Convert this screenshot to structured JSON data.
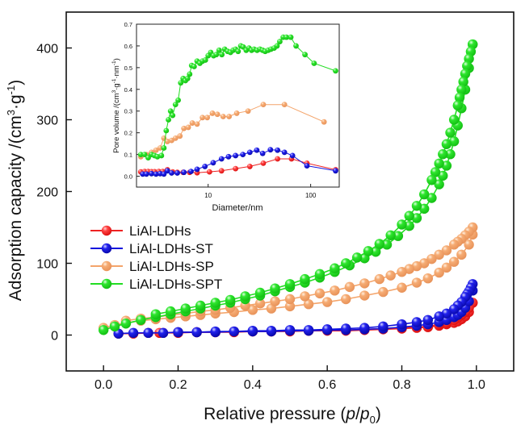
{
  "chart_data": [
    {
      "type": "scatter",
      "role": "main",
      "title": "",
      "xlabel": "Relative pressure (p/p0)",
      "xlabel_parts": [
        "Relative pressure (",
        "p",
        "/",
        "p",
        "0",
        ")"
      ],
      "ylabel": "Adsorption capacity /(cm3·g-1)",
      "ylabel_parts": [
        "Adsorption capacity /(cm",
        "3",
        "·g",
        "-1",
        ")"
      ],
      "xlim": [
        -0.1,
        1.1
      ],
      "ylim": [
        -50,
        450
      ],
      "xticks": [
        0.0,
        0.2,
        0.4,
        0.6,
        0.8,
        1.0
      ],
      "xtick_labels": [
        "0.0",
        "0.2",
        "0.4",
        "0.6",
        "0.8",
        "1.0"
      ],
      "yticks": [
        0,
        100,
        200,
        300,
        400
      ],
      "ytick_labels": [
        "0",
        "100",
        "200",
        "300",
        "400"
      ],
      "grid": false,
      "legend_position": "middle-left",
      "series": [
        {
          "name": "LiAl-LDHs",
          "color": "#ee2222",
          "adsorption": {
            "x": [
              0.04,
              0.08,
              0.12,
              0.16,
              0.2,
              0.25,
              0.3,
              0.35,
              0.4,
              0.45,
              0.5,
              0.55,
              0.6,
              0.65,
              0.7,
              0.75,
              0.8,
              0.84,
              0.87,
              0.9,
              0.92,
              0.94,
              0.95,
              0.96,
              0.97,
              0.98,
              0.99
            ],
            "y": [
              2,
              2,
              3,
              3,
              3,
              4,
              4,
              4,
              5,
              5,
              5,
              6,
              6,
              6,
              7,
              8,
              9,
              10,
              11,
              13,
              15,
              17,
              19,
              22,
              26,
              32,
              45
            ]
          },
          "desorption": {
            "x": [
              0.99,
              0.98,
              0.97,
              0.96,
              0.95,
              0.94,
              0.92,
              0.9,
              0.87,
              0.84,
              0.8,
              0.75,
              0.7,
              0.65,
              0.6,
              0.55,
              0.5,
              0.45,
              0.4,
              0.35,
              0.3,
              0.25,
              0.2,
              0.15
            ],
            "y": [
              45,
              38,
              32,
              28,
              24,
              21,
              17,
              15,
              12,
              11,
              10,
              9,
              8,
              7,
              7,
              6,
              6,
              5,
              5,
              5,
              4,
              4,
              4,
              3
            ]
          }
        },
        {
          "name": "LiAl-LDHs-ST",
          "color": "#1111dd",
          "adsorption": {
            "x": [
              0.04,
              0.08,
              0.12,
              0.16,
              0.2,
              0.25,
              0.3,
              0.35,
              0.4,
              0.45,
              0.5,
              0.55,
              0.6,
              0.65,
              0.7,
              0.75,
              0.8,
              0.84,
              0.87,
              0.9,
              0.92,
              0.94,
              0.95,
              0.96,
              0.97,
              0.98,
              0.99
            ],
            "y": [
              2,
              3,
              3,
              3,
              4,
              4,
              4,
              5,
              5,
              5,
              6,
              6,
              7,
              7,
              8,
              9,
              11,
              13,
              15,
              18,
              21,
              25,
              28,
              32,
              38,
              47,
              62
            ]
          },
          "desorption": {
            "x": [
              0.99,
              0.985,
              0.98,
              0.975,
              0.97,
              0.96,
              0.95,
              0.94,
              0.92,
              0.9,
              0.87,
              0.84,
              0.8,
              0.75,
              0.7,
              0.65,
              0.6,
              0.55,
              0.5,
              0.45,
              0.4,
              0.35,
              0.3,
              0.25,
              0.2
            ],
            "y": [
              71,
              66,
              61,
              57,
              53,
              46,
              41,
              36,
              30,
              26,
              21,
              18,
              15,
              12,
              10,
              9,
              8,
              7,
              7,
              6,
              6,
              5,
              5,
              4,
              4
            ]
          }
        },
        {
          "name": "LiAl-LDHs-SP",
          "color": "#f4a46a",
          "adsorption": {
            "x": [
              0.0,
              0.03,
              0.06,
              0.1,
              0.14,
              0.18,
              0.22,
              0.26,
              0.3,
              0.35,
              0.4,
              0.45,
              0.5,
              0.55,
              0.6,
              0.65,
              0.7,
              0.75,
              0.8,
              0.84,
              0.87,
              0.9,
              0.92,
              0.94,
              0.96,
              0.98,
              0.99
            ],
            "y": [
              10,
              14,
              17,
              20,
              22,
              24,
              26,
              28,
              30,
              32,
              35,
              37,
              40,
              43,
              46,
              50,
              55,
              60,
              66,
              73,
              79,
              87,
              94,
              102,
              112,
              126,
              140
            ]
          },
          "desorption": {
            "x": [
              0.99,
              0.98,
              0.97,
              0.96,
              0.95,
              0.94,
              0.92,
              0.9,
              0.88,
              0.86,
              0.84,
              0.82,
              0.8,
              0.77,
              0.74,
              0.7,
              0.66,
              0.62,
              0.58,
              0.54,
              0.5,
              0.46,
              0.42,
              0.38,
              0.34,
              0.3,
              0.26,
              0.22,
              0.18,
              0.14,
              0.1,
              0.06
            ],
            "y": [
              150,
              144,
              139,
              134,
              130,
              126,
              118,
              112,
              106,
              100,
              96,
              92,
              88,
              83,
              78,
              72,
              67,
              62,
              58,
              54,
              50,
              47,
              44,
              41,
              38,
              35,
              33,
              30,
              28,
              25,
              23,
              20
            ]
          }
        },
        {
          "name": "LiAl-LDHs-SPT",
          "color": "#22dd22",
          "adsorption": {
            "x": [
              0.0,
              0.03,
              0.06,
              0.1,
              0.14,
              0.18,
              0.22,
              0.26,
              0.3,
              0.34,
              0.38,
              0.42,
              0.46,
              0.5,
              0.54,
              0.58,
              0.62,
              0.66,
              0.7,
              0.73,
              0.76,
              0.79,
              0.82,
              0.84,
              0.86,
              0.88,
              0.9,
              0.91,
              0.92,
              0.93,
              0.94,
              0.95,
              0.96,
              0.97,
              0.98,
              0.99
            ],
            "y": [
              7,
              12,
              16,
              21,
              25,
              29,
              33,
              37,
              41,
              45,
              50,
              55,
              61,
              67,
              73,
              80,
              88,
              97,
              107,
              116,
              126,
              138,
              152,
              163,
              176,
              191,
              210,
              222,
              236,
              252,
              270,
              292,
              316,
              342,
              372,
              405
            ]
          },
          "desorption": {
            "x": [
              0.99,
              0.985,
              0.98,
              0.975,
              0.97,
              0.965,
              0.96,
              0.955,
              0.95,
              0.94,
              0.93,
              0.92,
              0.91,
              0.9,
              0.89,
              0.88,
              0.86,
              0.84,
              0.82,
              0.8,
              0.77,
              0.74,
              0.71,
              0.68,
              0.65,
              0.62,
              0.58,
              0.54,
              0.5,
              0.46,
              0.42,
              0.38,
              0.34,
              0.3,
              0.26,
              0.22,
              0.18,
              0.14
            ],
            "y": [
              405,
              395,
              385,
              375,
              364,
              353,
              342,
              331,
              320,
              300,
              282,
              266,
              252,
              239,
              227,
              216,
              196,
              180,
              166,
              154,
              139,
              127,
              117,
              108,
              100,
              93,
              85,
              78,
              71,
              65,
              59,
              54,
              49,
              45,
              41,
              37,
              33,
              29
            ]
          }
        }
      ]
    },
    {
      "type": "line",
      "role": "inset",
      "title": "",
      "xlabel": "Diameter/nm",
      "ylabel": "Pore volume /(cm3·g-1·nm-1)",
      "ylabel_parts": [
        "Pore volume /(cm",
        "3",
        "·g",
        "-1",
        "·nm",
        "-1",
        ")"
      ],
      "xscale": "log",
      "xlim": [
        2.0,
        190
      ],
      "ylim": [
        -0.05,
        0.7
      ],
      "xticks": [
        10,
        100
      ],
      "xtick_labels": [
        "10",
        "100"
      ],
      "yticks": [
        0.0,
        0.1,
        0.2,
        0.3,
        0.4,
        0.5,
        0.6,
        0.7
      ],
      "ytick_labels": [
        "0.0",
        "0.1",
        "0.2",
        "0.3",
        "0.4",
        "0.5",
        "0.6",
        "0.7"
      ],
      "grid": false,
      "series": [
        {
          "name": "LiAl-LDHs",
          "color": "#ee2222",
          "x": [
            2.2,
            2.4,
            2.6,
            2.8,
            3.0,
            3.3,
            3.6,
            4.0,
            4.5,
            5.0,
            5.7,
            6.6,
            7.8,
            10.3,
            13.5,
            18.5,
            25.5,
            34.5,
            47.5,
            65,
            92,
            175
          ],
          "y": [
            0.02,
            0.022,
            0.022,
            0.021,
            0.021,
            0.022,
            0.022,
            0.03,
            0.02,
            0.018,
            0.018,
            0.018,
            0.016,
            0.02,
            0.025,
            0.035,
            0.045,
            0.06,
            0.08,
            0.08,
            0.06,
            0.03
          ]
        },
        {
          "name": "LiAl-LDHs-ST",
          "color": "#1111dd",
          "x": [
            2.3,
            2.5,
            2.8,
            3.1,
            3.4,
            3.7,
            4.0,
            4.4,
            5.0,
            5.8,
            6.8,
            7.8,
            9.3,
            11.2,
            13.5,
            15.8,
            18.5,
            21.8,
            25.5,
            29.8,
            34.0,
            40.5,
            47.5,
            55.5,
            66.5,
            92,
            175
          ],
          "y": [
            0.01,
            0.01,
            0.012,
            0.01,
            0.012,
            0.01,
            0.025,
            0.015,
            0.015,
            0.018,
            0.022,
            0.032,
            0.045,
            0.062,
            0.08,
            0.09,
            0.095,
            0.1,
            0.11,
            0.12,
            0.105,
            0.122,
            0.12,
            0.11,
            0.095,
            0.048,
            0.025
          ]
        },
        {
          "name": "LiAl-LDHs-SP",
          "color": "#f4a46a",
          "x": [
            2.2,
            2.5,
            2.8,
            3.1,
            3.4,
            3.7,
            4.0,
            4.4,
            4.8,
            5.3,
            5.8,
            6.4,
            7.0,
            7.8,
            8.8,
            9.8,
            11.0,
            12.3,
            14.0,
            16.0,
            19.0,
            24.5,
            34.5,
            55.5,
            135
          ],
          "y": [
            0.09,
            0.1,
            0.11,
            0.12,
            0.13,
            0.175,
            0.16,
            0.165,
            0.175,
            0.185,
            0.22,
            0.225,
            0.245,
            0.24,
            0.27,
            0.27,
            0.29,
            0.285,
            0.275,
            0.275,
            0.29,
            0.3,
            0.33,
            0.33,
            0.25
          ]
        },
        {
          "name": "LiAl-LDHs-SPT",
          "color": "#22dd22",
          "x": [
            2.2,
            2.4,
            2.6,
            2.8,
            3.0,
            3.2,
            3.5,
            3.7,
            3.9,
            4.1,
            4.3,
            4.5,
            4.8,
            5.1,
            5.4,
            5.7,
            6.0,
            6.3,
            6.6,
            6.9,
            7.3,
            7.8,
            8.3,
            8.8,
            9.4,
            10.0,
            10.6,
            11.3,
            12.0,
            12.8,
            13.6,
            14.5,
            15.5,
            16.5,
            17.5,
            18.5,
            19.6,
            20.8,
            22.0,
            23.5,
            25.0,
            26.5,
            28.0,
            30.0,
            32.0,
            34.0,
            36.0,
            38.5,
            41.0,
            44.0,
            47.0,
            50.0,
            54.0,
            58.0,
            64.0,
            72.0,
            88.0,
            108.0,
            175.0
          ],
          "y": [
            0.1,
            0.1,
            0.085,
            0.1,
            0.095,
            0.09,
            0.095,
            0.13,
            0.21,
            0.26,
            0.3,
            0.28,
            0.33,
            0.35,
            0.43,
            0.45,
            0.44,
            0.45,
            0.47,
            0.51,
            0.505,
            0.53,
            0.52,
            0.53,
            0.535,
            0.555,
            0.57,
            0.555,
            0.56,
            0.58,
            0.56,
            0.585,
            0.575,
            0.57,
            0.58,
            0.585,
            0.575,
            0.6,
            0.595,
            0.58,
            0.59,
            0.58,
            0.585,
            0.58,
            0.585,
            0.58,
            0.575,
            0.58,
            0.585,
            0.59,
            0.6,
            0.62,
            0.64,
            0.64,
            0.64,
            0.6,
            0.56,
            0.52,
            0.485
          ]
        }
      ]
    }
  ]
}
